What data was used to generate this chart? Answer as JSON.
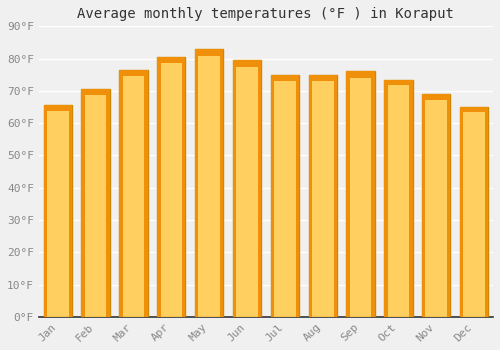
{
  "title": "Average monthly temperatures (°F ) in Koraput",
  "months": [
    "Jan",
    "Feb",
    "Mar",
    "Apr",
    "May",
    "Jun",
    "Jul",
    "Aug",
    "Sep",
    "Oct",
    "Nov",
    "Dec"
  ],
  "values": [
    65.5,
    70.5,
    76.5,
    80.5,
    83.0,
    79.5,
    75.0,
    75.0,
    76.0,
    73.5,
    69.0,
    65.0
  ],
  "bar_color_center": "#FFD060",
  "bar_color_edge": "#F0900A",
  "ylim": [
    0,
    90
  ],
  "yticks": [
    0,
    10,
    20,
    30,
    40,
    50,
    60,
    70,
    80,
    90
  ],
  "ytick_labels": [
    "0°F",
    "10°F",
    "20°F",
    "30°F",
    "40°F",
    "50°F",
    "60°F",
    "70°F",
    "80°F",
    "90°F"
  ],
  "background_color": "#f0f0f0",
  "grid_color": "#ffffff",
  "bar_edge_color": "#CC8800",
  "title_fontsize": 10,
  "tick_fontsize": 8,
  "tick_color": "#888888",
  "spine_color": "#333333",
  "bar_width": 0.75
}
